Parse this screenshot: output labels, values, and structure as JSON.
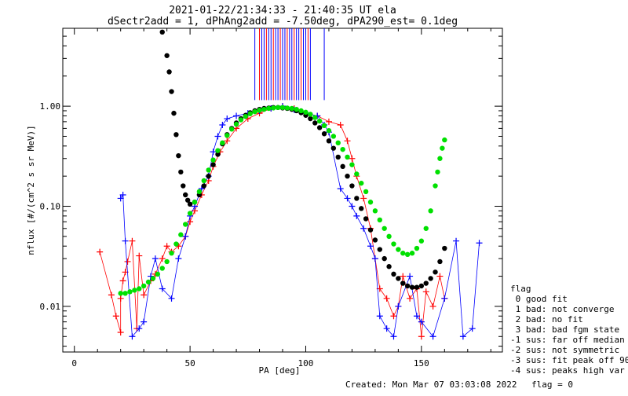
{
  "header": {
    "title_line1": "2021-01-22/21:34:33 - 21:40:35 UT ela",
    "title_line2": "dSectr2add = 1, dPhAng2add = -7.50deg, dPA290_est=   0.1deg"
  },
  "footer": {
    "created": "Created: Mon Mar 07 03:03:08 2022",
    "flag": "flag = 0"
  },
  "legend": {
    "title": "flag",
    "items": [
      " 0 good fit",
      " 1 bad: not converge",
      " 2 bad: no fit",
      " 3 bad: bad fgm state",
      "-1 sus: far off median",
      "-2 sus: not symmetric",
      "-3 sus: fit peak off 90",
      "-4 sus: peaks high var"
    ]
  },
  "colors": {
    "red": "#ff0000",
    "blue": "#0000ff",
    "green": "#00e000",
    "black": "#000000"
  },
  "chart_data": {
    "type": "scatter",
    "xlabel": "PA [deg]",
    "ylabel": "nflux [#/(cm^2 s sr MeV)]",
    "xlim": [
      -5,
      185
    ],
    "ylim": [
      0.0035,
      6.0
    ],
    "yscale": "log",
    "x_ticks": [
      0,
      50,
      100,
      150
    ],
    "x_tick_labels": [
      "0",
      "50",
      "100",
      "150"
    ],
    "y_ticks": [
      0.01,
      0.1,
      1.0
    ],
    "y_tick_labels": [
      "0.01",
      "0.10",
      "1.00"
    ],
    "vertical_lines_x": [
      78,
      80,
      81,
      82,
      83,
      84,
      85,
      86,
      87,
      88,
      89,
      90,
      91,
      92,
      93,
      94,
      95,
      96,
      97,
      98,
      99,
      100,
      101,
      102,
      108
    ],
    "series": [
      {
        "color": "red",
        "marker": "+",
        "x": [
          11,
          16,
          18,
          20,
          20,
          21,
          22,
          23,
          25,
          27,
          28,
          30,
          33,
          35,
          38,
          40,
          42,
          45,
          48,
          50,
          52,
          55,
          58,
          60,
          63,
          66,
          70,
          75,
          80,
          85,
          90,
          95,
          100,
          105,
          110,
          115,
          118,
          120,
          122,
          125,
          128,
          130,
          132,
          135,
          138,
          140,
          142,
          145,
          148,
          150,
          152,
          155,
          158,
          160
        ],
        "y": [
          0.035,
          0.013,
          0.008,
          0.0055,
          0.012,
          0.018,
          0.022,
          0.028,
          0.045,
          0.006,
          0.032,
          0.013,
          0.018,
          0.021,
          0.03,
          0.04,
          0.035,
          0.04,
          0.05,
          0.07,
          0.09,
          0.13,
          0.18,
          0.25,
          0.35,
          0.45,
          0.6,
          0.75,
          0.85,
          0.95,
          1.0,
          0.95,
          0.85,
          0.8,
          0.7,
          0.65,
          0.45,
          0.3,
          0.2,
          0.12,
          0.06,
          0.03,
          0.015,
          0.012,
          0.008,
          0.01,
          0.02,
          0.012,
          0.015,
          0.005,
          0.014,
          0.01,
          0.02,
          0.012
        ]
      },
      {
        "color": "blue",
        "marker": "+",
        "x": [
          20,
          21,
          22,
          25,
          28,
          30,
          33,
          35,
          38,
          42,
          45,
          48,
          50,
          52,
          55,
          58,
          60,
          62,
          64,
          66,
          70,
          75,
          80,
          85,
          90,
          95,
          100,
          105,
          108,
          110,
          115,
          118,
          120,
          122,
          125,
          128,
          130,
          132,
          135,
          138,
          140,
          145,
          148,
          150,
          155,
          160,
          165,
          168,
          172,
          175
        ],
        "y": [
          0.12,
          0.13,
          0.045,
          0.005,
          0.006,
          0.007,
          0.02,
          0.03,
          0.015,
          0.012,
          0.03,
          0.05,
          0.08,
          0.1,
          0.15,
          0.2,
          0.35,
          0.5,
          0.65,
          0.75,
          0.8,
          0.85,
          0.9,
          0.95,
          1.0,
          0.92,
          0.85,
          0.8,
          0.65,
          0.55,
          0.15,
          0.12,
          0.1,
          0.08,
          0.06,
          0.04,
          0.03,
          0.008,
          0.006,
          0.005,
          0.01,
          0.02,
          0.008,
          0.007,
          0.005,
          0.012,
          0.045,
          0.005,
          0.006,
          0.043
        ]
      },
      {
        "color": "black",
        "marker": "dot",
        "x": [
          38,
          40,
          41,
          42,
          43,
          44,
          45,
          46,
          47,
          48,
          49,
          50,
          52,
          54,
          56,
          58,
          60,
          62,
          64,
          66,
          68,
          70,
          72,
          74,
          76,
          78,
          80,
          82,
          84,
          86,
          88,
          90,
          92,
          94,
          96,
          98,
          100,
          102,
          104,
          106,
          108,
          110,
          112,
          114,
          116,
          118,
          120,
          122,
          124,
          126,
          128,
          130,
          132,
          134,
          136,
          138,
          140,
          142,
          144,
          146,
          148,
          150,
          152,
          154,
          156,
          158,
          160
        ],
        "y": [
          5.5,
          3.2,
          2.2,
          1.4,
          0.85,
          0.52,
          0.32,
          0.22,
          0.16,
          0.13,
          0.115,
          0.105,
          0.11,
          0.13,
          0.16,
          0.2,
          0.26,
          0.33,
          0.42,
          0.52,
          0.6,
          0.68,
          0.75,
          0.81,
          0.86,
          0.9,
          0.93,
          0.95,
          0.96,
          0.97,
          0.97,
          0.96,
          0.95,
          0.93,
          0.9,
          0.86,
          0.81,
          0.75,
          0.68,
          0.61,
          0.53,
          0.45,
          0.38,
          0.31,
          0.25,
          0.2,
          0.16,
          0.12,
          0.095,
          0.075,
          0.058,
          0.046,
          0.037,
          0.03,
          0.025,
          0.021,
          0.019,
          0.017,
          0.016,
          0.0155,
          0.0155,
          0.016,
          0.017,
          0.019,
          0.022,
          0.028,
          0.038
        ]
      },
      {
        "color": "green",
        "marker": "dot",
        "x": [
          20,
          22,
          24,
          26,
          28,
          30,
          32,
          34,
          36,
          38,
          40,
          42,
          44,
          46,
          48,
          50,
          52,
          54,
          56,
          58,
          60,
          62,
          64,
          66,
          68,
          70,
          72,
          74,
          76,
          78,
          80,
          82,
          84,
          86,
          88,
          90,
          92,
          94,
          96,
          98,
          100,
          102,
          104,
          106,
          108,
          110,
          112,
          114,
          116,
          118,
          120,
          122,
          124,
          126,
          128,
          130,
          132,
          134,
          136,
          138,
          140,
          142,
          144,
          146,
          148,
          150,
          152,
          154,
          156,
          157,
          158,
          159,
          160
        ],
        "y": [
          0.0135,
          0.0135,
          0.014,
          0.0145,
          0.015,
          0.016,
          0.0175,
          0.019,
          0.021,
          0.024,
          0.028,
          0.034,
          0.042,
          0.052,
          0.066,
          0.085,
          0.11,
          0.14,
          0.18,
          0.23,
          0.29,
          0.36,
          0.43,
          0.51,
          0.59,
          0.66,
          0.73,
          0.79,
          0.84,
          0.88,
          0.91,
          0.93,
          0.95,
          0.96,
          0.97,
          0.97,
          0.96,
          0.95,
          0.93,
          0.9,
          0.87,
          0.83,
          0.77,
          0.71,
          0.64,
          0.57,
          0.5,
          0.43,
          0.37,
          0.31,
          0.26,
          0.21,
          0.17,
          0.14,
          0.11,
          0.09,
          0.073,
          0.06,
          0.05,
          0.042,
          0.037,
          0.034,
          0.033,
          0.034,
          0.038,
          0.045,
          0.06,
          0.09,
          0.16,
          0.22,
          0.3,
          0.38,
          0.46
        ]
      }
    ]
  }
}
